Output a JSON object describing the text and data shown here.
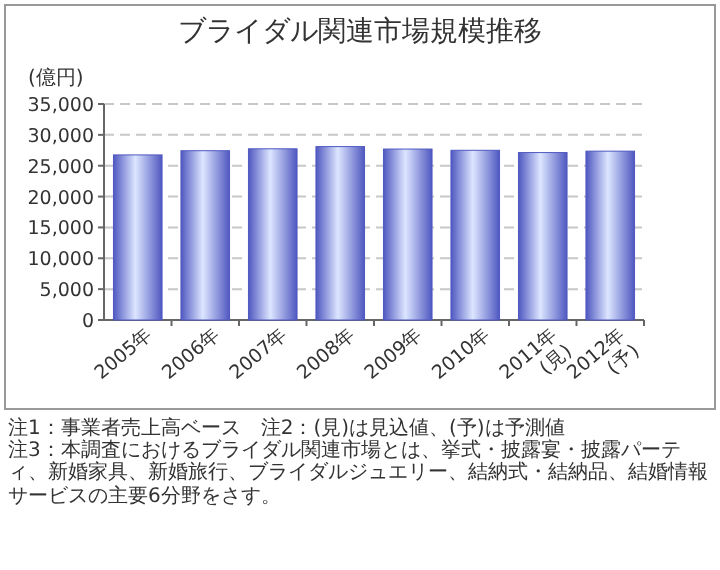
{
  "chart_data": {
    "type": "bar",
    "title": "ブライダル関連市場規模推移",
    "ylabel": "(億円)",
    "categories": [
      "2005年",
      "2006年",
      "2007年",
      "2008年",
      "2009年",
      "2010年",
      "2011年\n(見)",
      "2012年\n(予)"
    ],
    "values": [
      26750,
      27430,
      27740,
      28100,
      27700,
      27500,
      27130,
      27360
    ],
    "color": "#4f58c0",
    "ylim": [
      0,
      35000
    ],
    "yticks": [
      0,
      {
        "value": 5000,
        "label": "5,000"
      },
      {
        "value": 10000,
        "label": "10,000"
      },
      {
        "value": 15000,
        "label": "15,000"
      },
      {
        "value": 20000,
        "label": "20,000"
      },
      {
        "value": 25000,
        "label": "25,000"
      },
      {
        "value": 30000,
        "label": "30,000"
      },
      {
        "value": 35000,
        "label": "35,000"
      }
    ],
    "grid": "y",
    "annotations": [
      "注1：事業者売上高ベース　注2：(見)は見込値、(予)は予測値",
      "注3：本調査におけるブライダル関連市場とは、挙式・披露宴・披露パーティ、新婚家具、新婚旅行、ブライダルジュエリー、結納式・結納品、結婚情報サービスの主要6分野をさす。"
    ]
  }
}
